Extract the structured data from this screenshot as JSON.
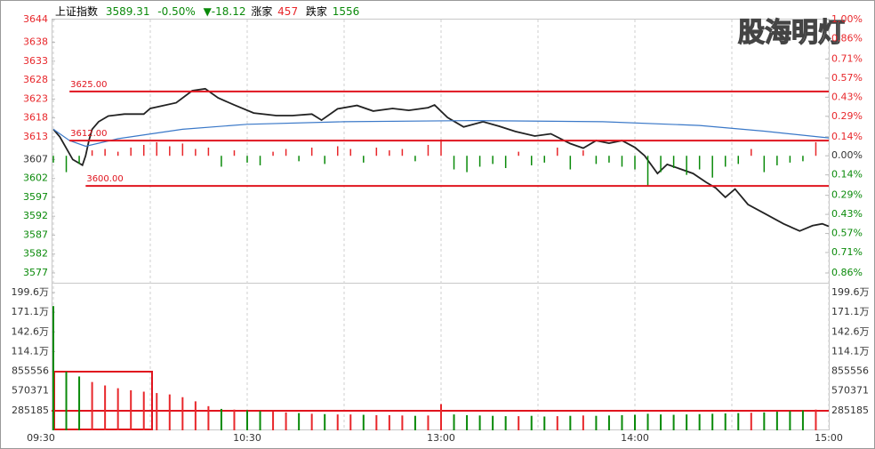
{
  "chart_data": [
    {
      "type": "line",
      "header": {
        "name": "上证指数",
        "price": "3589.31",
        "change_pct": "-0.50%",
        "change": "▼-18.12",
        "up_label": "涨家",
        "up_count": 457,
        "down_label": "跌家",
        "down_count": 1556
      },
      "watermark": "股海明灯",
      "xlim": [
        0,
        240
      ],
      "xticks": [
        {
          "value": 0,
          "label": "09:30"
        },
        {
          "value": 30,
          "label": null
        },
        {
          "value": 60,
          "label": "10:30"
        },
        {
          "value": 90,
          "label": null
        },
        {
          "value": 120,
          "label": "13:00"
        },
        {
          "value": 150,
          "label": null
        },
        {
          "value": 180,
          "label": "14:00"
        },
        {
          "value": 210,
          "label": null
        },
        {
          "value": 240,
          "label": "15:00"
        }
      ],
      "ylim": [
        3577,
        3644
      ],
      "yticks": [
        3644,
        3638,
        3633,
        3628,
        3623,
        3618,
        3613,
        3607,
        3602,
        3597,
        3592,
        3587,
        3582,
        3577
      ],
      "y2lim": [
        -0.86,
        1.0
      ],
      "y2ticks": [
        {
          "value": 1.0,
          "label": "1.00%"
        },
        {
          "value": 0.86,
          "label": "0.86%"
        },
        {
          "value": 0.71,
          "label": "0.71%"
        },
        {
          "value": 0.57,
          "label": "0.57%"
        },
        {
          "value": 0.43,
          "label": "0.43%"
        },
        {
          "value": 0.29,
          "label": "0.29%"
        },
        {
          "value": 0.14,
          "label": "0.14%"
        },
        {
          "value": 0,
          "label": "0.00%"
        },
        {
          "value": -0.14,
          "label": "0.14%"
        },
        {
          "value": -0.29,
          "label": "0.29%"
        },
        {
          "value": -0.43,
          "label": "0.43%"
        },
        {
          "value": -0.57,
          "label": "0.57%"
        },
        {
          "value": -0.71,
          "label": "0.71%"
        },
        {
          "value": -0.86,
          "label": "0.86%"
        }
      ],
      "up_color": "#e8272b",
      "down_color": "#0a8a0a",
      "levels": [
        {
          "value": 3625,
          "label": "3625.00",
          "from": 5
        },
        {
          "value": 3612,
          "label": "3612.00",
          "from": 5
        },
        {
          "value": 3600,
          "label": "3600.00",
          "from": 10
        }
      ],
      "level_color": "#e0141e",
      "series": [
        {
          "type": "line",
          "color": "#222222",
          "x": [
            0,
            2,
            4,
            6,
            8,
            9,
            10,
            11,
            12,
            14,
            17,
            22,
            28,
            30,
            38,
            43,
            47,
            51,
            56,
            62,
            69,
            74,
            80,
            83,
            88,
            94,
            99,
            105,
            110,
            116,
            118,
            122,
            127,
            133,
            138,
            143,
            149,
            154,
            160,
            164,
            168,
            172,
            176,
            180,
            183,
            187,
            190,
            194,
            198,
            202,
            205,
            208,
            211,
            215,
            220,
            226,
            231,
            235,
            238,
            240
          ],
          "values": [
            3615,
            3613,
            3610,
            3607,
            3606,
            3605.5,
            3608,
            3612,
            3615,
            3617,
            3618.5,
            3619,
            3619,
            3620.5,
            3622,
            3625.2,
            3625.7,
            3623.3,
            3621.4,
            3619.3,
            3618.6,
            3618.6,
            3619,
            3617.4,
            3620.4,
            3621.3,
            3619.8,
            3620.5,
            3620,
            3620.7,
            3621.4,
            3618.1,
            3615.6,
            3617,
            3615.8,
            3614.4,
            3613.2,
            3613.8,
            3611.2,
            3610,
            3612,
            3611.3,
            3612,
            3610.2,
            3608,
            3603.3,
            3605.7,
            3604.5,
            3603.3,
            3601,
            3599.5,
            3597,
            3599.2,
            3595.1,
            3592.8,
            3590,
            3588.1,
            3589.5,
            3590,
            3589.31
          ]
        },
        {
          "type": "line",
          "color": "#3a78c8",
          "x": [
            0,
            5,
            10,
            20,
            40,
            60,
            90,
            130,
            170,
            200,
            220,
            240
          ],
          "values": [
            3615,
            3612,
            3610.5,
            3612.5,
            3615,
            3616.3,
            3617,
            3617.3,
            3617,
            3616,
            3614.5,
            3612.7
          ]
        },
        {
          "type": "bar",
          "axis": "y2",
          "x": [
            0,
            4,
            8,
            12,
            16,
            20,
            24,
            28,
            32,
            36,
            40,
            44,
            48,
            52,
            56,
            60,
            64,
            68,
            72,
            76,
            80,
            84,
            88,
            92,
            96,
            100,
            104,
            108,
            112,
            116,
            120,
            124,
            128,
            132,
            136,
            140,
            144,
            148,
            152,
            156,
            160,
            164,
            168,
            172,
            176,
            180,
            184,
            188,
            192,
            196,
            200,
            204,
            208,
            212,
            216,
            220,
            224,
            228,
            232,
            236
          ],
          "values": [
            -0.05,
            -0.12,
            -0.06,
            0.04,
            0.05,
            0.03,
            0.06,
            0.08,
            0.1,
            0.07,
            0.09,
            0.05,
            0.06,
            -0.08,
            0.04,
            -0.05,
            -0.07,
            0.03,
            0.05,
            -0.04,
            0.06,
            -0.06,
            0.07,
            0.05,
            -0.05,
            0.06,
            0.04,
            0.05,
            -0.04,
            0.08,
            0.12,
            -0.1,
            -0.12,
            -0.08,
            -0.06,
            -0.09,
            0.03,
            -0.07,
            -0.05,
            0.06,
            -0.1,
            0.04,
            -0.06,
            -0.05,
            -0.08,
            -0.1,
            -0.22,
            -0.12,
            -0.09,
            -0.14,
            -0.1,
            -0.16,
            -0.08,
            -0.06,
            0.05,
            -0.12,
            -0.07,
            -0.05,
            -0.04,
            0.1
          ]
        }
      ]
    },
    {
      "type": "bar",
      "xlim": [
        0,
        240
      ],
      "ylim": [
        0,
        1996296
      ],
      "yticks": [
        {
          "value": 1996296,
          "label": "199.6万"
        },
        {
          "value": 1711111,
          "label": "171.1万"
        },
        {
          "value": 1425926,
          "label": "142.6万"
        },
        {
          "value": 1140741,
          "label": "114.1万"
        },
        855556,
        570371,
        285185
      ],
      "x": [
        0,
        4,
        8,
        12,
        16,
        20,
        24,
        28,
        32,
        36,
        40,
        44,
        48,
        52,
        56,
        60,
        64,
        68,
        72,
        76,
        80,
        84,
        88,
        92,
        96,
        100,
        104,
        108,
        112,
        116,
        120,
        124,
        128,
        132,
        136,
        140,
        144,
        148,
        152,
        156,
        160,
        164,
        168,
        172,
        176,
        180,
        184,
        188,
        192,
        196,
        200,
        204,
        208,
        212,
        216,
        220,
        224,
        228,
        232,
        236
      ],
      "values": [
        1800000,
        850000,
        780000,
        700000,
        650000,
        610000,
        580000,
        560000,
        540000,
        520000,
        480000,
        420000,
        350000,
        310000,
        300000,
        290000,
        280000,
        270000,
        260000,
        250000,
        240000,
        235000,
        230000,
        230000,
        225000,
        220000,
        220000,
        215000,
        210000,
        215000,
        380000,
        230000,
        220000,
        215000,
        210000,
        205000,
        205000,
        210000,
        200000,
        205000,
        210000,
        215000,
        210000,
        215000,
        220000,
        225000,
        240000,
        230000,
        225000,
        230000,
        235000,
        240000,
        245000,
        250000,
        255000,
        260000,
        270000,
        280000,
        290000,
        300000
      ]
    }
  ]
}
